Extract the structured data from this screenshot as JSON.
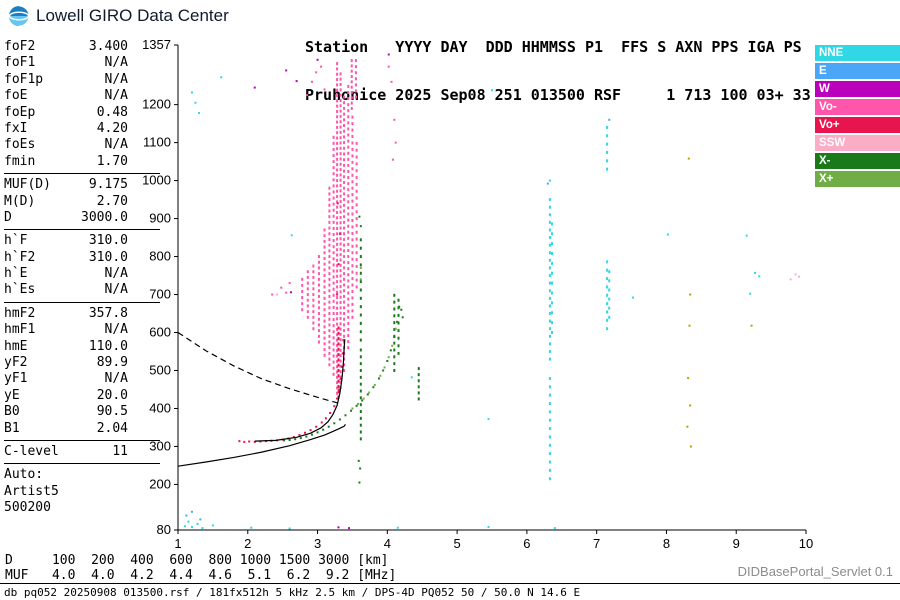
{
  "app": {
    "logo_text": "Lowell GIRO Data Center",
    "servlet_label": "DIDBasePortal_Servlet 0.1"
  },
  "header": {
    "line1": "Station   YYYY DAY  DDD HHMMSS P1  FFS S AXN PPS IGA PS",
    "line2": "Pruhonice 2025 Sep08 251 013500 RSF     1 713 100 03+ 33"
  },
  "parameters": [
    {
      "label": "foF2",
      "value": "3.400"
    },
    {
      "label": "foF1",
      "value": "N/A"
    },
    {
      "label": "foF1p",
      "value": "N/A"
    },
    {
      "label": "foE",
      "value": "N/A"
    },
    {
      "label": "foEp",
      "value": "0.48"
    },
    {
      "label": "fxI",
      "value": "4.20"
    },
    {
      "label": "foEs",
      "value": "N/A"
    },
    {
      "label": "fmin",
      "value": "1.70"
    },
    {
      "divider": true
    },
    {
      "label": "MUF(D)",
      "value": "9.175"
    },
    {
      "label": "M(D)",
      "value": "2.70"
    },
    {
      "label": "D",
      "value": "3000.0"
    },
    {
      "divider": true
    },
    {
      "label": "h`F",
      "value": "310.0"
    },
    {
      "label": "h`F2",
      "value": "310.0"
    },
    {
      "label": "h`E",
      "value": "N/A"
    },
    {
      "label": "h`Es",
      "value": "N/A"
    },
    {
      "divider": true
    },
    {
      "label": "hmF2",
      "value": "357.8"
    },
    {
      "label": "hmF1",
      "value": "N/A"
    },
    {
      "label": "hmE",
      "value": "110.0"
    },
    {
      "label": "yF2",
      "value": "89.9"
    },
    {
      "label": "yF1",
      "value": "N/A"
    },
    {
      "label": "yE",
      "value": "20.0"
    },
    {
      "label": "B0",
      "value": "90.5"
    },
    {
      "label": "B1",
      "value": "2.04"
    },
    {
      "divider": true
    },
    {
      "label": "C-level",
      "value": "11"
    },
    {
      "divider": true
    }
  ],
  "auto_block": {
    "title": "Auto:",
    "lines": [
      "Artist5",
      "500200"
    ]
  },
  "legend": [
    {
      "label": "NNE",
      "color": "#2FD8E4"
    },
    {
      "label": "E",
      "color": "#4BA6F7"
    },
    {
      "label": "W",
      "color": "#BB00BB"
    },
    {
      "label": "Vo-",
      "color": "#FF55AA"
    },
    {
      "label": "Vo+",
      "color": "#E8144E"
    },
    {
      "label": "SSW",
      "color": "#FBADC8"
    },
    {
      "label": "X-",
      "color": "#1A7A1A"
    },
    {
      "label": "X+",
      "color": "#71AD46"
    }
  ],
  "muf_table": {
    "rows": [
      {
        "label": "D",
        "values": [
          "100",
          "200",
          "400",
          "600",
          "800",
          "1000",
          "1500",
          "3000"
        ],
        "unit": "[km]"
      },
      {
        "label": "MUF",
        "values": [
          "4.0",
          "4.0",
          "4.2",
          "4.4",
          "4.6",
          "5.1",
          "6.2",
          "9.2"
        ],
        "unit": "[MHz]"
      }
    ]
  },
  "status_bar": "db pq052 20250908 013500.rsf / 181fx512h 5 kHz 2.5 km / DPS-4D PQ052 50 / 50.0 N 14.6 E",
  "chart_data": {
    "type": "scatter",
    "title": "Ionogram Pruhonice 2025-09-08 01:35:00",
    "xlabel": "[MHz]",
    "ylabel": "[km]",
    "xlim": [
      1,
      10
    ],
    "ylim": [
      80,
      1357
    ],
    "x_ticks": [
      1,
      2,
      3,
      4,
      5,
      6,
      7,
      8,
      9,
      10
    ],
    "y_ticks": [
      80,
      200,
      300,
      400,
      500,
      600,
      700,
      800,
      900,
      1000,
      1100,
      1200,
      1357
    ],
    "grid": false,
    "legend_position": "right",
    "series": [
      {
        "name": "NNE",
        "color": "#2FD8E4",
        "points": [
          [
            1.1,
            90
          ],
          [
            1.15,
            102
          ],
          [
            1.2,
            88
          ],
          [
            1.28,
            96
          ],
          [
            1.35,
            85
          ],
          [
            1.5,
            92
          ],
          [
            2.05,
            86
          ],
          [
            2.6,
            84
          ],
          [
            4.15,
            86
          ],
          [
            5.45,
            88
          ],
          [
            6.4,
            85
          ],
          [
            1.2,
            1232
          ],
          [
            1.25,
            1205
          ],
          [
            1.3,
            1178
          ],
          [
            1.62,
            1272
          ],
          [
            5.5,
            1238
          ],
          [
            5.45,
            372
          ],
          [
            4.35,
            482
          ],
          [
            9.2,
            702
          ],
          [
            9.27,
            757
          ],
          [
            9.33,
            748
          ],
          [
            7.52,
            692
          ],
          [
            9.15,
            855
          ],
          [
            2.63,
            856
          ],
          [
            6.33,
            1000
          ],
          [
            8.02,
            858
          ]
        ],
        "columns": [
          {
            "x": 6.33,
            "from": 215,
            "to": 500,
            "step": 22
          },
          {
            "x": 6.33,
            "from": 530,
            "to": 960,
            "step": 20
          },
          {
            "x": 6.36,
            "from": 600,
            "to": 900,
            "step": 26
          },
          {
            "x": 7.15,
            "from": 610,
            "to": 800,
            "step": 22
          },
          {
            "x": 7.15,
            "from": 1030,
            "to": 1145,
            "step": 22
          },
          {
            "x": 7.18,
            "from": 640,
            "to": 760,
            "step": 24
          }
        ]
      },
      {
        "name": "E",
        "color": "#4BA6F7",
        "points": [
          [
            1.12,
            118
          ],
          [
            1.2,
            128
          ],
          [
            1.32,
            108
          ],
          [
            6.3,
            992
          ],
          [
            7.18,
            1160
          ]
        ]
      },
      {
        "name": "W",
        "color": "#BB00BB",
        "points": [
          [
            2.55,
            1290
          ],
          [
            2.7,
            1262
          ],
          [
            3.0,
            1318
          ],
          [
            3.3,
            87
          ],
          [
            3.45,
            85
          ],
          [
            2.62,
            706
          ],
          [
            4.02,
            1332
          ],
          [
            2.1,
            1245
          ]
        ]
      },
      {
        "name": "Vo-",
        "color": "#FF55AA",
        "points": [
          [
            4.02,
            1300
          ],
          [
            4.06,
            1260
          ],
          [
            4.1,
            1160
          ],
          [
            4.12,
            1100
          ],
          [
            4.08,
            1055
          ],
          [
            2.6,
            730
          ],
          [
            2.55,
            705
          ],
          [
            2.48,
            718
          ],
          [
            2.35,
            700
          ],
          [
            2.92,
            1260
          ],
          [
            2.98,
            1285
          ],
          [
            3.05,
            1300
          ],
          [
            3.1,
            1240
          ],
          [
            2.85,
            1225
          ]
        ],
        "columns": [
          {
            "x": 2.78,
            "from": 660,
            "to": 748,
            "step": 16
          },
          {
            "x": 2.86,
            "from": 640,
            "to": 760,
            "step": 15
          },
          {
            "x": 2.94,
            "from": 610,
            "to": 780,
            "step": 15
          },
          {
            "x": 3.02,
            "from": 575,
            "to": 810,
            "step": 15
          },
          {
            "x": 3.1,
            "from": 540,
            "to": 880,
            "step": 15
          },
          {
            "x": 3.17,
            "from": 515,
            "to": 980,
            "step": 15
          },
          {
            "x": 3.23,
            "from": 490,
            "to": 1120,
            "step": 16
          },
          {
            "x": 3.28,
            "from": 440,
            "to": 1315,
            "step": 14
          },
          {
            "x": 3.33,
            "from": 455,
            "to": 1290,
            "step": 14
          },
          {
            "x": 3.38,
            "from": 500,
            "to": 1230,
            "step": 15
          },
          {
            "x": 3.44,
            "from": 560,
            "to": 1260,
            "step": 16
          },
          {
            "x": 3.5,
            "from": 640,
            "to": 1180,
            "step": 17
          },
          {
            "x": 3.56,
            "from": 720,
            "to": 1100,
            "step": 18
          },
          {
            "x": 3.49,
            "from": 1190,
            "to": 1320,
            "step": 14
          },
          {
            "x": 3.55,
            "from": 1220,
            "to": 1320,
            "step": 16
          }
        ]
      },
      {
        "name": "Vo+",
        "color": "#E8144E",
        "points": [
          [
            1.88,
            314
          ],
          [
            1.95,
            312
          ],
          [
            2.02,
            313
          ],
          [
            2.1,
            312
          ],
          [
            2.18,
            313
          ],
          [
            2.26,
            314
          ],
          [
            2.34,
            315
          ],
          [
            2.42,
            316
          ],
          [
            2.5,
            318
          ],
          [
            2.58,
            321
          ],
          [
            2.66,
            325
          ],
          [
            2.74,
            330
          ],
          [
            2.82,
            336
          ],
          [
            2.9,
            343
          ],
          [
            2.98,
            352
          ],
          [
            3.06,
            363
          ],
          [
            3.12,
            374
          ],
          [
            3.18,
            388
          ],
          [
            3.24,
            406
          ],
          [
            3.28,
            426
          ],
          [
            3.31,
            450
          ],
          [
            3.33,
            478
          ],
          [
            3.35,
            510
          ],
          [
            3.36,
            545
          ],
          [
            3.37,
            580
          ],
          [
            3.28,
            700
          ],
          [
            3.3,
            780
          ],
          [
            3.32,
            860
          ],
          [
            3.29,
            940
          ]
        ],
        "columns": [
          {
            "x": 3.3,
            "from": 430,
            "to": 620,
            "step": 14
          }
        ]
      },
      {
        "name": "SSW",
        "color": "#FBADC8",
        "points": [
          [
            9.78,
            740
          ],
          [
            9.85,
            753
          ],
          [
            9.9,
            747
          ],
          [
            2.42,
            700
          ]
        ]
      },
      {
        "name": "X-",
        "color": "#1A7A1A",
        "points": [
          [
            2.52,
            316
          ],
          [
            2.6,
            317
          ],
          [
            2.68,
            319
          ],
          [
            2.76,
            322
          ],
          [
            2.84,
            326
          ],
          [
            2.92,
            331
          ],
          [
            3.0,
            337
          ],
          [
            3.08,
            344
          ],
          [
            3.16,
            352
          ],
          [
            3.24,
            361
          ],
          [
            3.32,
            371
          ],
          [
            3.4,
            382
          ],
          [
            3.48,
            394
          ],
          [
            3.56,
            407
          ],
          [
            3.64,
            421
          ],
          [
            3.72,
            437
          ],
          [
            3.8,
            456
          ],
          [
            3.88,
            479
          ],
          [
            3.94,
            500
          ],
          [
            4.0,
            525
          ],
          [
            4.05,
            553
          ],
          [
            4.1,
            588
          ],
          [
            4.14,
            628
          ],
          [
            4.17,
            668
          ],
          [
            3.6,
            205
          ],
          [
            3.61,
            242
          ],
          [
            3.59,
            262
          ],
          [
            4.2,
            660
          ],
          [
            4.22,
            640
          ],
          [
            3.62,
            880
          ],
          [
            3.6,
            905
          ]
        ],
        "columns": [
          {
            "x": 3.62,
            "from": 320,
            "to": 560,
            "step": 18
          },
          {
            "x": 3.62,
            "from": 580,
            "to": 850,
            "step": 22
          },
          {
            "x": 4.1,
            "from": 500,
            "to": 700,
            "step": 18
          },
          {
            "x": 4.16,
            "from": 545,
            "to": 690,
            "step": 20
          },
          {
            "x": 4.45,
            "from": 425,
            "to": 520,
            "step": 16
          }
        ]
      },
      {
        "name": "X+",
        "color": "#71AD46",
        "points": [
          [
            3.5,
            400
          ],
          [
            3.58,
            412
          ],
          [
            3.66,
            426
          ],
          [
            3.74,
            442
          ],
          [
            3.82,
            462
          ],
          [
            3.9,
            486
          ],
          [
            3.96,
            508
          ],
          [
            4.02,
            535
          ],
          [
            4.07,
            565
          ],
          [
            3.62,
            740
          ],
          [
            3.62,
            770
          ],
          [
            4.12,
            610
          ]
        ]
      },
      {
        "name": "unclassified-yellow",
        "color": "#B8A000",
        "points": [
          [
            8.32,
            1058
          ],
          [
            8.34,
            700
          ],
          [
            8.33,
            618
          ],
          [
            8.31,
            480
          ],
          [
            8.34,
            408
          ],
          [
            8.3,
            352
          ],
          [
            8.35,
            300
          ],
          [
            9.22,
            618
          ]
        ]
      }
    ],
    "overlays": [
      {
        "name": "extrapolated-trace",
        "style": "dashed",
        "points": [
          [
            1.0,
            600
          ],
          [
            1.4,
            552
          ],
          [
            1.8,
            512
          ],
          [
            2.2,
            478
          ],
          [
            2.6,
            452
          ],
          [
            2.9,
            435
          ],
          [
            3.1,
            424
          ],
          [
            3.3,
            414
          ]
        ]
      },
      {
        "name": "true-height-profile",
        "style": "solid",
        "points": [
          [
            1.0,
            248
          ],
          [
            1.4,
            259
          ],
          [
            1.8,
            271
          ],
          [
            2.2,
            285
          ],
          [
            2.6,
            302
          ],
          [
            2.9,
            318
          ],
          [
            3.1,
            330
          ],
          [
            3.2,
            338
          ],
          [
            3.3,
            346
          ],
          [
            3.38,
            353
          ],
          [
            3.4,
            358
          ]
        ]
      },
      {
        "name": "o-trace-fit",
        "style": "solid",
        "points": [
          [
            2.1,
            314
          ],
          [
            2.4,
            316
          ],
          [
            2.7,
            324
          ],
          [
            2.9,
            335
          ],
          [
            3.05,
            349
          ],
          [
            3.15,
            365
          ],
          [
            3.22,
            384
          ],
          [
            3.28,
            408
          ],
          [
            3.32,
            440
          ],
          [
            3.35,
            478
          ],
          [
            3.37,
            520
          ],
          [
            3.38,
            555
          ],
          [
            3.39,
            582
          ]
        ]
      }
    ]
  }
}
